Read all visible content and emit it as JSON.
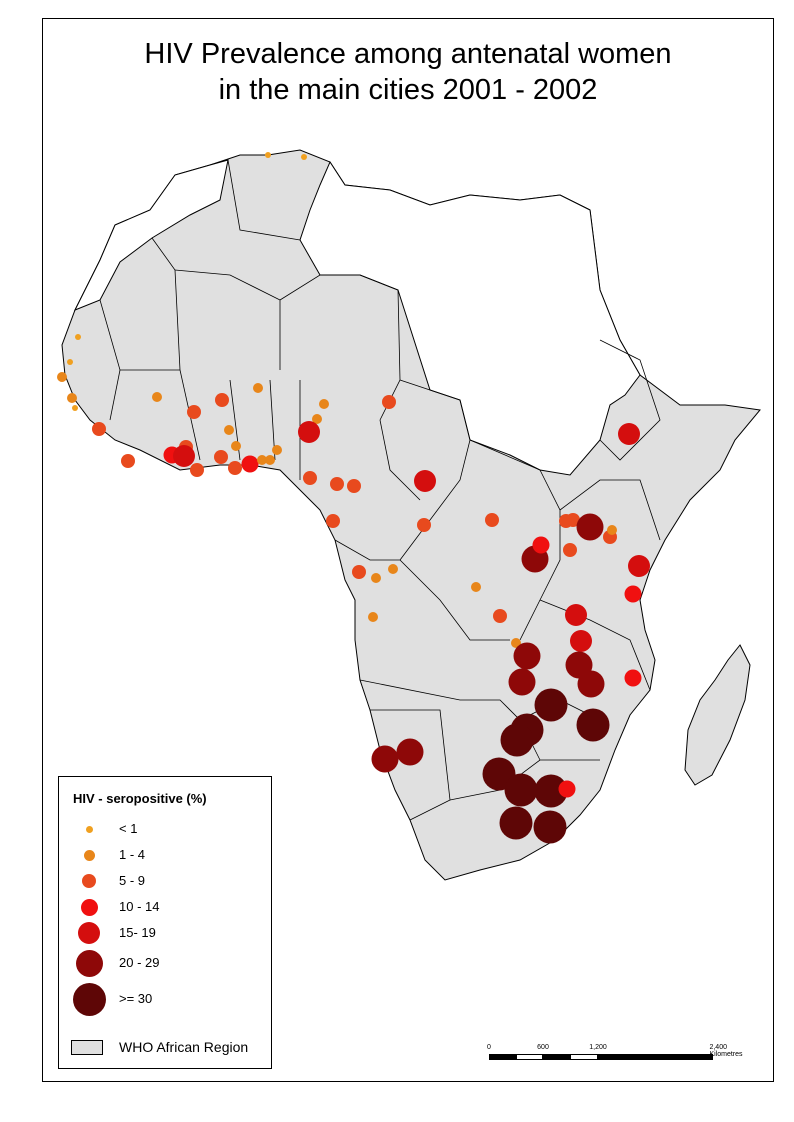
{
  "title_line1": "HIV Prevalence among antenatal women",
  "title_line2": "in the main cities 2001 - 2002",
  "legend": {
    "title": "HIV - seropositive (%)",
    "classes": [
      {
        "label": "< 1",
        "color": "#f0a020"
      },
      {
        "label": "1 - 4",
        "color": "#e8861a"
      },
      {
        "label": "5 - 9",
        "color": "#e84a1e"
      },
      {
        "label": "10 - 14",
        "color": "#f01010"
      },
      {
        "label": "15- 19",
        "color": "#d40e0e"
      },
      {
        "label": "20 - 29",
        "color": "#8e0808"
      },
      {
        "label": ">= 30",
        "color": "#5e0606"
      }
    ],
    "region_label": "WHO African Region",
    "region_color": "#e0e0e0"
  },
  "scale": {
    "ticks": [
      "0",
      "600",
      "1,200",
      "2,400 Kilometres"
    ]
  }
}
